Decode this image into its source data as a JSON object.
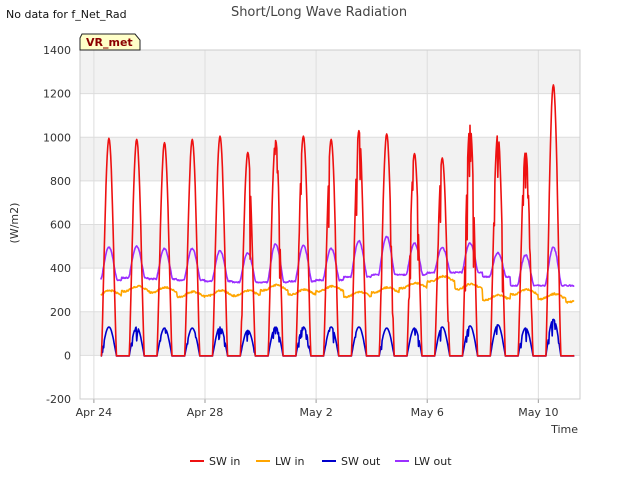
{
  "note": "No data for f_Net_Rad",
  "badge": "VR_met",
  "chart_data": {
    "type": "line",
    "title": "Short/Long Wave Radiation",
    "xlabel": "Time",
    "ylabel": "(W/m2)",
    "ylim": [
      -200,
      1400
    ],
    "yticks": [
      -200,
      0,
      200,
      400,
      600,
      800,
      1000,
      1200,
      1400
    ],
    "xlim": [
      "2024-04-23T12:00",
      "2024-05-11T12:00"
    ],
    "xticks": [
      {
        "date": "2024-04-24",
        "label": "Apr 24"
      },
      {
        "date": "2024-04-28",
        "label": "Apr 28"
      },
      {
        "date": "2024-05-02",
        "label": "May 2"
      },
      {
        "date": "2024-05-06",
        "label": "May 6"
      },
      {
        "date": "2024-05-10",
        "label": "May 10"
      }
    ],
    "grid": true,
    "banded_background": true,
    "legend_position": "bottom",
    "days": [
      "2024-04-24",
      "2024-04-25",
      "2024-04-26",
      "2024-04-27",
      "2024-04-28",
      "2024-04-29",
      "2024-04-30",
      "2024-05-01",
      "2024-05-02",
      "2024-05-03",
      "2024-05-04",
      "2024-05-05",
      "2024-05-06",
      "2024-05-07",
      "2024-05-08",
      "2024-05-09",
      "2024-05-10",
      "2024-05-11"
    ],
    "series": [
      {
        "name": "SW in",
        "color": "#ee1111",
        "daily_peak": [
          995,
          990,
          975,
          990,
          1005,
          930,
          985,
          1005,
          990,
          1030,
          1015,
          925,
          905,
          1055,
          1015,
          935,
          1240,
          0
        ]
      },
      {
        "name": "LW in",
        "color": "#ffa500",
        "daily_mean": [
          285,
          305,
          300,
          280,
          285,
          285,
          310,
          290,
          305,
          280,
          300,
          320,
          350,
          315,
          265,
          290,
          270,
          255
        ]
      },
      {
        "name": "SW out",
        "color": "#0000cc",
        "daily_peak": [
          130,
          130,
          125,
          125,
          130,
          115,
          130,
          130,
          130,
          130,
          125,
          125,
          130,
          135,
          140,
          125,
          165,
          0
        ]
      },
      {
        "name": "LW out",
        "color": "#9b30ff",
        "daily_min": [
          345,
          355,
          350,
          345,
          340,
          335,
          335,
          340,
          345,
          360,
          370,
          370,
          380,
          380,
          360,
          320,
          320,
          320
        ],
        "daily_peak": [
          495,
          500,
          490,
          490,
          480,
          470,
          510,
          505,
          490,
          525,
          545,
          515,
          495,
          515,
          470,
          460,
          495,
          330
        ]
      }
    ]
  }
}
